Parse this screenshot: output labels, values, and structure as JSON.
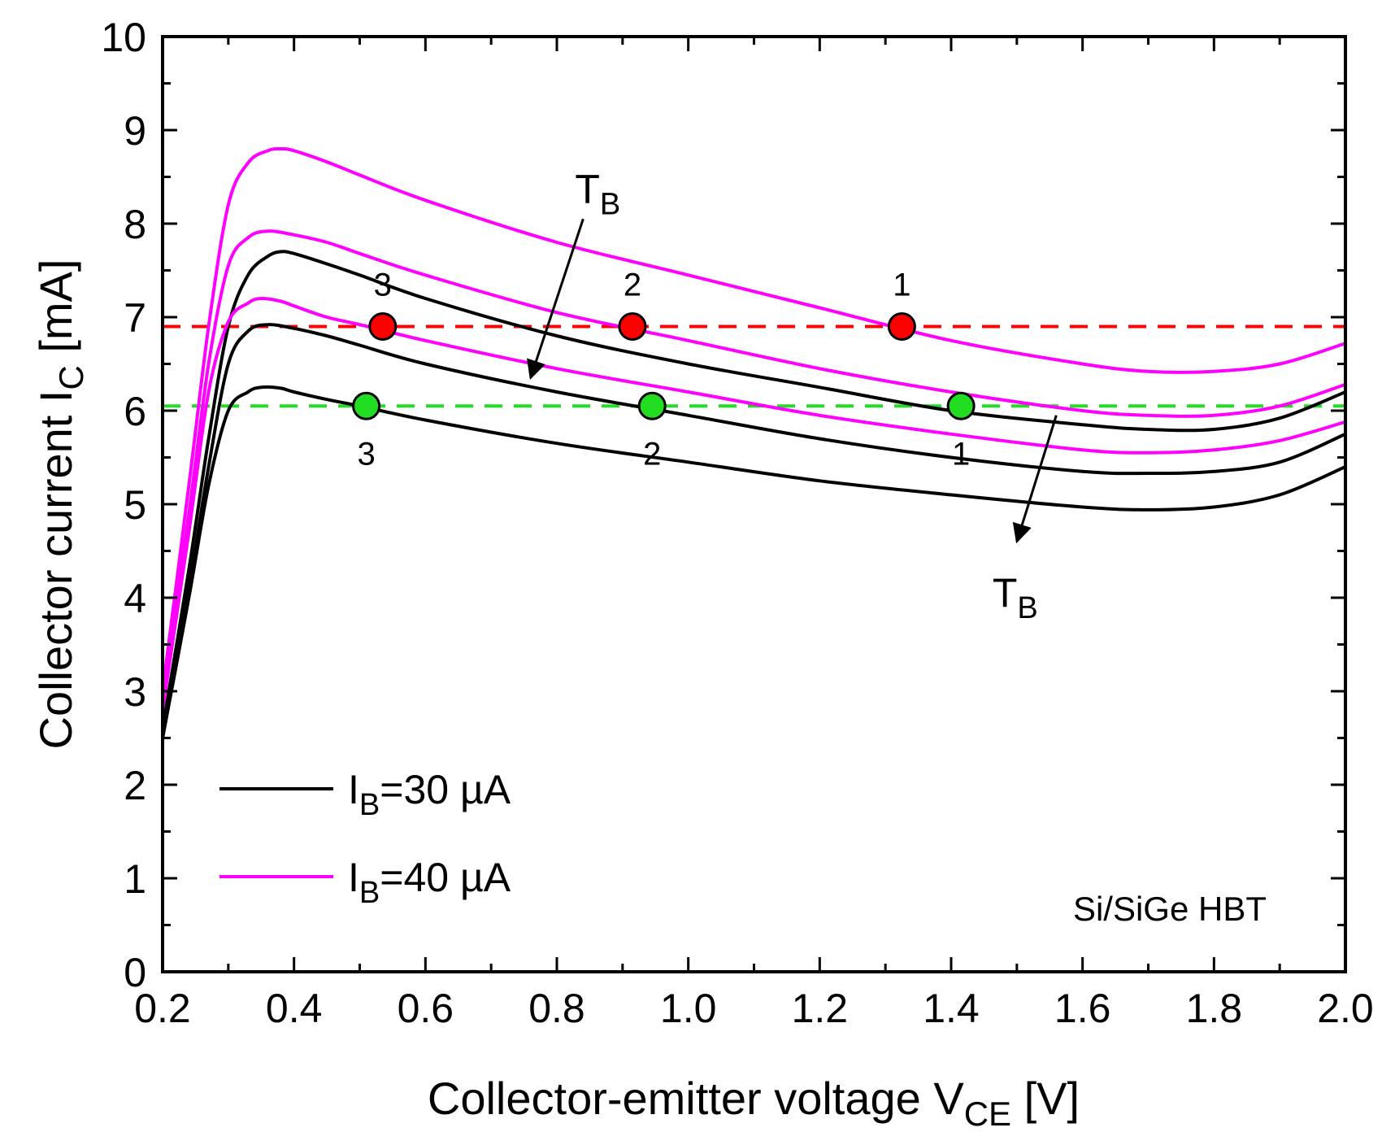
{
  "chart_data": {
    "type": "line",
    "title": "",
    "xlabel": {
      "main": "Collector-emitter voltage V",
      "sub": "CE",
      "tail": " [V]"
    },
    "ylabel": {
      "main": "Collector current I",
      "sub": "C",
      "tail": " [mA]"
    },
    "xlim": [
      0.2,
      2.0
    ],
    "ylim": [
      0,
      10
    ],
    "xticks": [
      0.2,
      0.4,
      0.6,
      0.8,
      1.0,
      1.2,
      1.4,
      1.6,
      1.8,
      2.0
    ],
    "xtick_labels": [
      "0.2",
      "0.4",
      "0.6",
      "0.8",
      "1.0",
      "1.2",
      "1.4",
      "1.6",
      "1.8",
      "2.0"
    ],
    "yticks": [
      0,
      1,
      2,
      3,
      4,
      5,
      6,
      7,
      8,
      9,
      10
    ],
    "ytick_labels": [
      "0",
      "1",
      "2",
      "3",
      "4",
      "5",
      "6",
      "7",
      "8",
      "9",
      "10"
    ],
    "colors": {
      "black": "#000000",
      "magenta": "#ff00ff",
      "red": "#ff0000",
      "green": "#22dd22"
    },
    "series": [
      {
        "name": "IB=30 µA, curve 3",
        "color": "#000000",
        "x": [
          0.2,
          0.24,
          0.27,
          0.3,
          0.33,
          0.36,
          0.38,
          0.4,
          0.45,
          0.5,
          0.6,
          0.8,
          1.0,
          1.2,
          1.4,
          1.6,
          1.7,
          1.8,
          1.9,
          2.0
        ],
        "y": [
          2.6,
          4.3,
          5.7,
          6.9,
          7.45,
          7.65,
          7.7,
          7.68,
          7.57,
          7.45,
          7.2,
          6.8,
          6.5,
          6.25,
          6.0,
          5.85,
          5.8,
          5.8,
          5.92,
          6.2
        ]
      },
      {
        "name": "IB=30 µA, curve 2",
        "color": "#000000",
        "x": [
          0.2,
          0.24,
          0.27,
          0.3,
          0.33,
          0.36,
          0.4,
          0.45,
          0.5,
          0.6,
          0.8,
          1.0,
          1.2,
          1.4,
          1.6,
          1.7,
          1.8,
          1.9,
          2.0
        ],
        "y": [
          2.5,
          4.1,
          5.4,
          6.5,
          6.85,
          6.92,
          6.88,
          6.8,
          6.7,
          6.5,
          6.2,
          5.95,
          5.7,
          5.5,
          5.35,
          5.33,
          5.35,
          5.45,
          5.75
        ]
      },
      {
        "name": "IB=30 µA, curve 1",
        "color": "#000000",
        "x": [
          0.2,
          0.24,
          0.27,
          0.3,
          0.33,
          0.35,
          0.38,
          0.4,
          0.45,
          0.5,
          0.6,
          0.8,
          1.0,
          1.2,
          1.4,
          1.6,
          1.7,
          1.8,
          1.9,
          2.0
        ],
        "y": [
          2.5,
          4.0,
          5.2,
          6.0,
          6.2,
          6.25,
          6.24,
          6.2,
          6.12,
          6.05,
          5.9,
          5.65,
          5.45,
          5.25,
          5.1,
          4.97,
          4.94,
          4.97,
          5.1,
          5.4
        ]
      },
      {
        "name": "IB=40 µA, curve 3",
        "color": "#ff00ff",
        "x": [
          0.2,
          0.24,
          0.27,
          0.3,
          0.33,
          0.36,
          0.38,
          0.4,
          0.45,
          0.5,
          0.6,
          0.8,
          1.0,
          1.2,
          1.4,
          1.6,
          1.7,
          1.8,
          1.9,
          2.0
        ],
        "y": [
          3.0,
          5.2,
          6.9,
          8.2,
          8.65,
          8.78,
          8.8,
          8.78,
          8.66,
          8.52,
          8.25,
          7.8,
          7.45,
          7.1,
          6.75,
          6.5,
          6.42,
          6.42,
          6.5,
          6.72
        ]
      },
      {
        "name": "IB=40 µA, curve 2",
        "color": "#ff00ff",
        "x": [
          0.2,
          0.24,
          0.27,
          0.3,
          0.33,
          0.36,
          0.4,
          0.45,
          0.5,
          0.6,
          0.8,
          1.0,
          1.2,
          1.4,
          1.6,
          1.7,
          1.8,
          1.9,
          2.0
        ],
        "y": [
          2.9,
          4.9,
          6.5,
          7.55,
          7.85,
          7.92,
          7.88,
          7.8,
          7.68,
          7.45,
          7.05,
          6.75,
          6.45,
          6.2,
          6.0,
          5.95,
          5.95,
          6.05,
          6.28
        ]
      },
      {
        "name": "IB=40 µA, curve 1",
        "color": "#ff00ff",
        "x": [
          0.2,
          0.24,
          0.27,
          0.3,
          0.33,
          0.35,
          0.38,
          0.4,
          0.45,
          0.5,
          0.6,
          0.8,
          1.0,
          1.2,
          1.4,
          1.6,
          1.7,
          1.8,
          1.9,
          2.0
        ],
        "y": [
          2.8,
          4.7,
          6.2,
          6.95,
          7.15,
          7.2,
          7.17,
          7.12,
          7.0,
          6.92,
          6.75,
          6.45,
          6.2,
          5.95,
          5.75,
          5.58,
          5.55,
          5.58,
          5.68,
          5.88
        ]
      }
    ],
    "reference_lines": [
      {
        "name": "red-dashed",
        "y": 6.9,
        "color": "#ff0000"
      },
      {
        "name": "green-dashed",
        "y": 6.05,
        "color": "#22dd22"
      }
    ],
    "markers": [
      {
        "x": 0.535,
        "y": 6.9,
        "color": "#ff0000",
        "label": "3",
        "label_pos": "above"
      },
      {
        "x": 0.915,
        "y": 6.9,
        "color": "#ff0000",
        "label": "2",
        "label_pos": "above"
      },
      {
        "x": 1.325,
        "y": 6.9,
        "color": "#ff0000",
        "label": "1",
        "label_pos": "above"
      },
      {
        "x": 0.51,
        "y": 6.05,
        "color": "#22dd22",
        "label": "3",
        "label_pos": "below"
      },
      {
        "x": 0.945,
        "y": 6.05,
        "color": "#22dd22",
        "label": "2",
        "label_pos": "below"
      },
      {
        "x": 1.415,
        "y": 6.05,
        "color": "#22dd22",
        "label": "1",
        "label_pos": "below"
      }
    ],
    "arrows": [
      {
        "label_main": "T",
        "label_sub": "B",
        "from": [
          0.84,
          8.05
        ],
        "to": [
          0.76,
          6.35
        ]
      },
      {
        "label_main": "T",
        "label_sub": "B",
        "from": [
          1.56,
          5.95
        ],
        "to": [
          1.5,
          4.6
        ]
      }
    ],
    "legend": {
      "position": "bottom-left",
      "entries": [
        {
          "prefix": "I",
          "sub": "B",
          "suffix": "=30 µA",
          "color": "#000000"
        },
        {
          "prefix": "I",
          "sub": "B",
          "suffix": "=40 µA",
          "color": "#ff00ff"
        }
      ]
    },
    "annotations": [
      {
        "text": "Si/SiGe HBT",
        "position": "bottom-right"
      }
    ],
    "grid": false
  }
}
